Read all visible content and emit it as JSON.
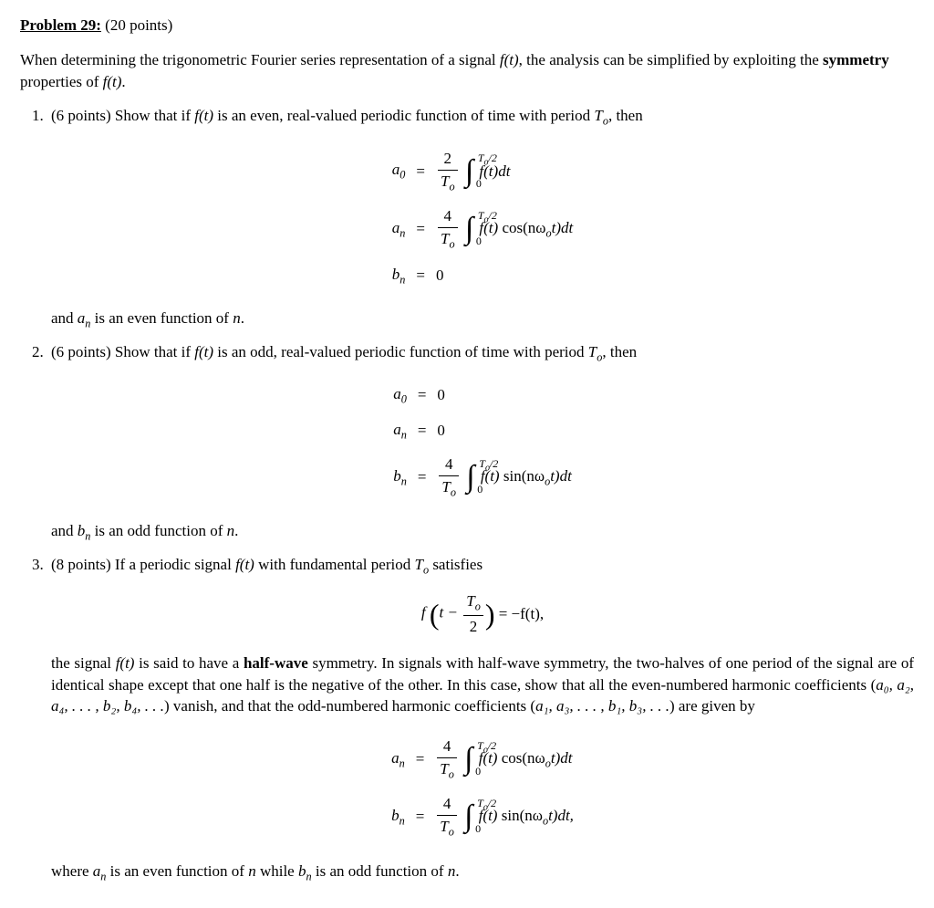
{
  "colors": {
    "text": "#000000",
    "background": "#ffffff"
  },
  "typography": {
    "font_family": "Times New Roman",
    "body_size_pt": 12
  },
  "title": {
    "label": "Problem 29:",
    "points": "(20 points)"
  },
  "intro": {
    "pre": "When determining the trigonometric Fourier series representation of a signal ",
    "sig": "f(t)",
    "mid": ", the analysis can be simplified by exploiting the ",
    "bold": "symmetry",
    "post": " properties of ",
    "sig2": "f(t)",
    "end": "."
  },
  "math": {
    "a0": "a",
    "a0sub": "0",
    "an": "a",
    "ansub": "n",
    "bn": "b",
    "bnsub": "n",
    "eq": "=",
    "zero": "0",
    "two": "2",
    "four": "4",
    "To": "T",
    "To_sub": "o",
    "ub": "T",
    "ub_sub": "o",
    "ub_half": "/2",
    "lb": "0",
    "int_sym": "∫",
    "ft": "f(t)",
    "dt": "dt",
    "cos": "cos(nω",
    "cos_sub": "o",
    "cos_end": "t)dt",
    "sin": "sin(nω",
    "sin_sub": "o",
    "sin_end": "t)dt",
    "sin_end_comma": "t)dt,",
    "hw_lhs_pre": "f",
    "hw_t": "t − ",
    "hw_half_num": "T",
    "hw_half_sub": "o",
    "hw_half_den": "2",
    "hw_rhs": "= −f(t),"
  },
  "part1": {
    "lead": "(6 points) Show that if ",
    "ft": "f(t)",
    "mid": " is an even, real-valued periodic function of time with period ",
    "To": "T",
    "To_sub": "o",
    "end": ", then",
    "after_pre": "and ",
    "after_an": "a",
    "after_an_sub": "n",
    "after_post": " is an even function of ",
    "after_n": "n",
    "after_end": "."
  },
  "part2": {
    "lead": "(6 points) Show that if ",
    "ft": "f(t)",
    "mid": " is an odd, real-valued periodic function of time with period ",
    "To": "T",
    "To_sub": "o",
    "end": ", then",
    "after_pre": "and ",
    "after_bn": "b",
    "after_bn_sub": "n",
    "after_post": " is an odd function of ",
    "after_n": "n",
    "after_end": "."
  },
  "part3": {
    "lead": "(8 points) If a periodic signal ",
    "ft": "f(t)",
    "mid": " with fundamental period ",
    "To": "T",
    "To_sub": "o",
    "end": " satisfies",
    "desc_pre": "the signal ",
    "desc_ft": "f(t)",
    "desc_mid1": " is said to have a ",
    "desc_bold": "half-wave",
    "desc_mid2": " symmetry. In signals with half-wave symmetry, the two-halves of one period of the signal are of identical shape except that one half is the negative of the other. In this case, show that all the even-numbered harmonic coefficients (",
    "even_list": "a₀, a₂, a₄, . . . , b₂, b₄, . . .",
    "desc_mid3": ") vanish, and that the odd-numbered harmonic coefficients (",
    "odd_list": "a₁, a₃, . . . , b₁, b₃, . . .",
    "desc_mid4": ") are given by",
    "after_pre": "where ",
    "after_an": "a",
    "after_an_sub": "n",
    "after_mid": " is an even function of ",
    "after_n1": "n",
    "after_mid2": " while ",
    "after_bn": "b",
    "after_bn_sub": "n",
    "after_mid3": " is an odd function of ",
    "after_n2": "n",
    "after_end": "."
  }
}
